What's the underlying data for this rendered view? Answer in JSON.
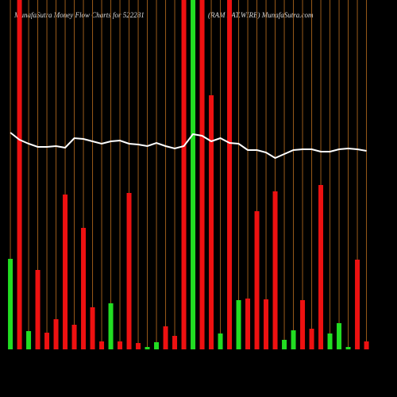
{
  "chart_data": {
    "type": "bar",
    "title": "MunafaSutra  Money Flow  Charts for 522281",
    "subtitle": "(RAM RAT.WIRE) MunafaSutra.com",
    "categories": [
      null,
      null,
      null,
      null,
      null,
      null,
      null,
      null,
      null,
      null,
      null,
      null,
      null,
      null,
      null,
      null,
      null,
      null,
      null,
      null,
      null,
      null,
      null,
      null,
      null,
      null,
      null,
      null,
      null,
      null,
      null,
      null,
      null,
      null,
      null,
      null,
      null,
      null,
      null,
      null
    ],
    "values": [
      114,
      440,
      23,
      100,
      21,
      38,
      195,
      31,
      153,
      53,
      10,
      58,
      10,
      197,
      8,
      3,
      9,
      29,
      17,
      440,
      440,
      440,
      320,
      20,
      440,
      62,
      64,
      174,
      63,
      199,
      12,
      24,
      62,
      26,
      207,
      20,
      33,
      3,
      113,
      10
    ],
    "bar_colors": [
      "#22dd22",
      "#ee1111",
      "#22dd22",
      "#ee1111",
      "#ee1111",
      "#ee1111",
      "#ee1111",
      "#ee1111",
      "#ee1111",
      "#ee1111",
      "#ee1111",
      "#22dd22",
      "#ee1111",
      "#ee1111",
      "#ee1111",
      "#22dd22",
      "#22dd22",
      "#ee1111",
      "#ee1111",
      "#ee1111",
      "#22dd22",
      "#ee1111",
      "#ee1111",
      "#22dd22",
      "#ee1111",
      "#22dd22",
      "#ee1111",
      "#ee1111",
      "#ee1111",
      "#ee1111",
      "#22dd22",
      "#22dd22",
      "#ee1111",
      "#ee1111",
      "#ee1111",
      "#22dd22",
      "#22dd22",
      "#22dd22",
      "#ee1111",
      "#ee1111"
    ],
    "line": {
      "color": "#ffffff",
      "values": [
        273,
        264,
        259,
        255,
        255,
        256,
        254,
        266,
        265,
        262,
        259,
        262,
        263,
        259,
        258,
        256,
        260,
        256,
        253,
        256,
        271,
        269,
        262,
        266,
        260,
        259,
        251,
        251,
        248,
        241,
        246,
        251,
        252,
        252,
        249,
        249,
        252,
        253,
        252,
        250
      ]
    },
    "ylim": [
      0,
      440
    ],
    "grid": true,
    "grid_color": "#9a5a1a"
  }
}
